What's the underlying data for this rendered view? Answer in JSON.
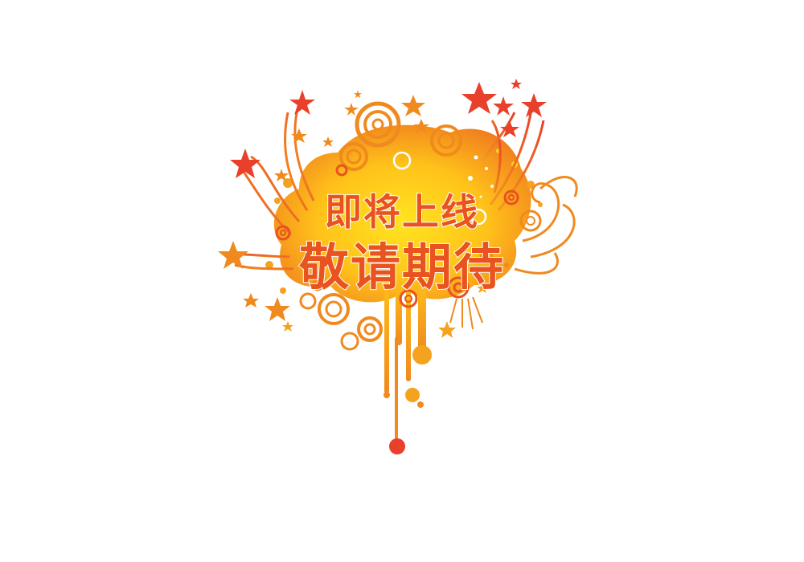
{
  "banner": {
    "line1": "即将上线",
    "line2": "敬请期待"
  },
  "colors": {
    "primary_text": "#e8531f",
    "splash_center": "#ffd21a",
    "splash_edge": "#f08a1e",
    "star": "#e8402a",
    "drip_dot": "#e8402a"
  },
  "icons": {
    "decoration": "star-icon",
    "ornament": "swirl-circle-icon"
  }
}
